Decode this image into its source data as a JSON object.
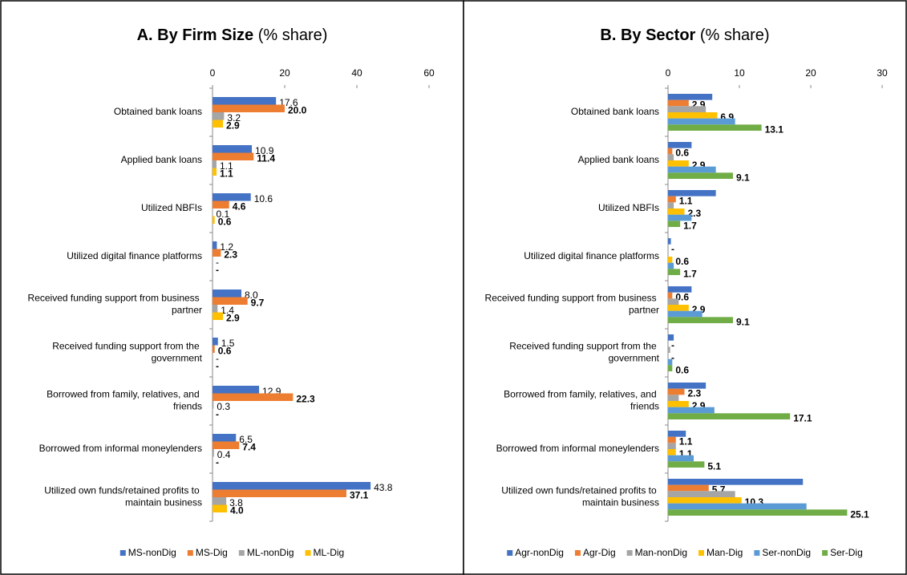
{
  "chart_data": [
    {
      "type": "bar",
      "horizontal": true,
      "title": "A. By Firm Size",
      "subtitle": "(% share)",
      "categories": [
        "Obtained bank loans",
        "Applied bank loans",
        "Utilized NBFIs",
        "Utilized digital finance platforms",
        "Received funding support from business partner",
        "Received funding support from the government",
        "Borrowed from family, relatives, and friends",
        "Borrowed from informal moneylenders",
        "Utilized own funds/retained profits to maintain business"
      ],
      "series": [
        {
          "name": "MS-nonDig",
          "color": "#4472c4",
          "label_color": "#4472c4",
          "label_bold": false,
          "values": [
            17.6,
            10.9,
            10.6,
            1.2,
            8.0,
            1.5,
            12.9,
            6.5,
            43.8
          ],
          "value_labels": [
            "17.6",
            "10.9",
            "10.6",
            "1.2",
            "8.0",
            "1.5",
            "12.9",
            "6.5",
            "43.8"
          ]
        },
        {
          "name": "MS-Dig",
          "color": "#ed7d31",
          "label_color": "#e8141b",
          "label_bold": true,
          "values": [
            20.0,
            11.4,
            4.6,
            2.3,
            9.7,
            0.6,
            22.3,
            7.4,
            37.1
          ],
          "value_labels": [
            "20.0",
            "11.4",
            "4.6",
            "2.3",
            "9.7",
            "0.6",
            "22.3",
            "7.4",
            "37.1"
          ]
        },
        {
          "name": "ML-nonDig",
          "color": "#a5a5a5",
          "label_color": "#000000",
          "label_bold": false,
          "values": [
            3.2,
            1.1,
            0.1,
            0,
            1.4,
            0,
            0.3,
            0.4,
            3.8
          ],
          "value_labels": [
            "3.2",
            "1.1",
            "0.1",
            "-",
            "1.4",
            "-",
            "0.3",
            "0.4",
            "3.8"
          ]
        },
        {
          "name": "ML-Dig",
          "color": "#ffc000",
          "label_color": "#c99a06",
          "label_bold": true,
          "values": [
            2.9,
            1.1,
            0.6,
            0,
            2.9,
            0,
            0,
            0,
            4.0
          ],
          "value_labels": [
            "2.9",
            "1.1",
            "0.6",
            "-",
            "2.9",
            "-",
            "-",
            "-",
            "4.0"
          ]
        }
      ],
      "xlim": [
        0,
        60
      ],
      "xticks": [
        0,
        20,
        40,
        60
      ]
    },
    {
      "type": "bar",
      "horizontal": true,
      "title": "B. By Sector",
      "subtitle": "(% share)",
      "categories": [
        "Obtained bank loans",
        "Applied bank loans",
        "Utilized NBFIs",
        "Utilized digital finance platforms",
        "Received funding support from business partner",
        "Received funding support from the government",
        "Borrowed from family, relatives, and friends",
        "Borrowed from informal moneylenders",
        "Utilized own funds/retained profits to maintain business"
      ],
      "series": [
        {
          "name": "Agr-nonDig",
          "color": "#4472c4",
          "values": [
            6.2,
            3.3,
            6.7,
            0.4,
            3.3,
            0.8,
            5.3,
            2.5,
            18.9
          ]
        },
        {
          "name": "Agr-Dig",
          "color": "#ed7d31",
          "label_color": "#c00000",
          "label_bold": true,
          "values": [
            2.9,
            0.6,
            1.1,
            0,
            0.6,
            0,
            2.3,
            1.1,
            5.7
          ],
          "value_labels": [
            "2.9",
            "0.6",
            "1.1",
            "-",
            "0.6",
            "-",
            "2.3",
            "1.1",
            "5.7"
          ]
        },
        {
          "name": "Man-nonDig",
          "color": "#a5a5a5",
          "values": [
            5.3,
            0.8,
            0.8,
            0,
            1.5,
            0.3,
            1.5,
            1.1,
            9.4
          ]
        },
        {
          "name": "Man-Dig",
          "color": "#ffc000",
          "label_color": "#c99a06",
          "label_bold": true,
          "values": [
            6.9,
            2.9,
            2.3,
            0.6,
            2.9,
            0,
            2.9,
            1.1,
            10.3
          ],
          "value_labels": [
            "6.9",
            "2.9",
            "2.3",
            "0.6",
            "2.9",
            "-",
            "2.9",
            "1.1",
            "10.3"
          ]
        },
        {
          "name": "Ser-nonDig",
          "color": "#5b9bd5",
          "values": [
            9.4,
            6.7,
            3.3,
            0.8,
            4.8,
            0.6,
            6.5,
            3.6,
            19.4
          ]
        },
        {
          "name": "Ser-Dig",
          "color": "#70ad47",
          "label_color": "#4e8a2a",
          "label_bold": true,
          "values": [
            13.1,
            9.1,
            1.7,
            1.7,
            9.1,
            0.6,
            17.1,
            5.1,
            25.1
          ],
          "value_labels": [
            "13.1",
            "9.1",
            "1.7",
            "1.7",
            "9.1",
            "0.6",
            "17.1",
            "5.1",
            "25.1"
          ]
        }
      ],
      "xlim": [
        0,
        30
      ],
      "xticks": [
        0,
        10,
        20,
        30
      ]
    }
  ]
}
